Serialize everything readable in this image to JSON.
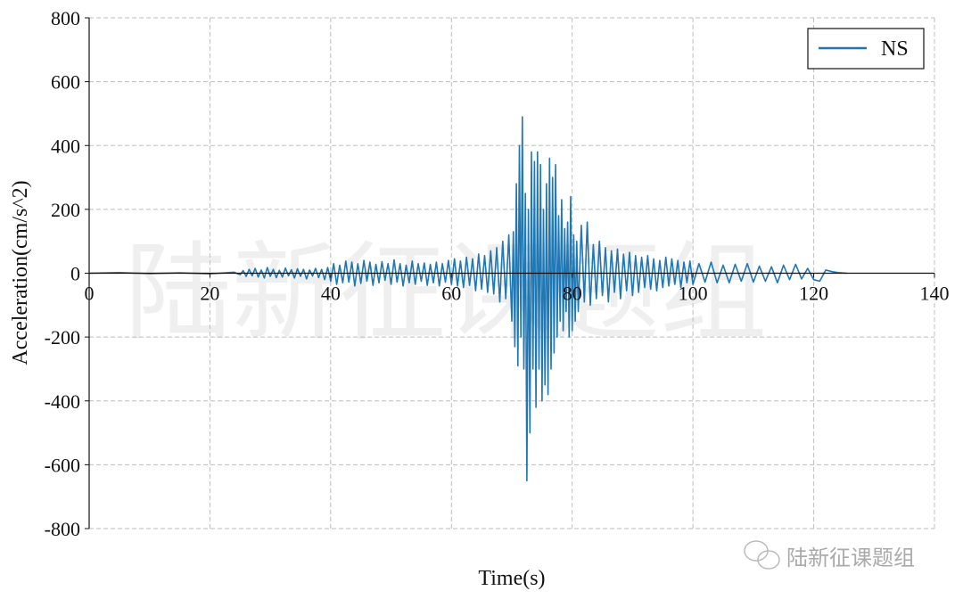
{
  "watermark": "陆新征课题组",
  "footer_watermark": "陆新征课题组",
  "chart_data": {
    "type": "line",
    "title": "",
    "xlabel": "Time(s)",
    "ylabel": "Acceleration(cm/s^2)",
    "xlim": [
      0,
      140
    ],
    "ylim": [
      -800,
      800
    ],
    "xticks": [
      0,
      20,
      40,
      60,
      80,
      100,
      120,
      140
    ],
    "yticks": [
      -800,
      -600,
      -400,
      -200,
      0,
      200,
      400,
      600,
      800
    ],
    "grid": true,
    "legend": {
      "placement": "top-right"
    },
    "series": [
      {
        "name": "NS",
        "color": "#1f77b4",
        "points": [
          [
            0,
            0
          ],
          [
            5,
            2
          ],
          [
            10,
            -1
          ],
          [
            15,
            1
          ],
          [
            20,
            -2
          ],
          [
            24,
            3
          ],
          [
            25,
            -5
          ],
          [
            25.5,
            8
          ],
          [
            26,
            -10
          ],
          [
            26.5,
            12
          ],
          [
            27,
            -8
          ],
          [
            27.5,
            15
          ],
          [
            28,
            -12
          ],
          [
            28.5,
            10
          ],
          [
            29,
            -15
          ],
          [
            29.5,
            18
          ],
          [
            30,
            -10
          ],
          [
            30.5,
            12
          ],
          [
            31,
            -14
          ],
          [
            31.5,
            9
          ],
          [
            32,
            -12
          ],
          [
            32.5,
            16
          ],
          [
            33,
            -8
          ],
          [
            33.5,
            11
          ],
          [
            34,
            -15
          ],
          [
            34.5,
            14
          ],
          [
            35,
            -10
          ],
          [
            35.5,
            12
          ],
          [
            36,
            -18
          ],
          [
            36.5,
            10
          ],
          [
            37,
            -9
          ],
          [
            37.5,
            15
          ],
          [
            38,
            -14
          ],
          [
            38.5,
            12
          ],
          [
            39,
            -20
          ],
          [
            39.5,
            18
          ],
          [
            40,
            -25
          ],
          [
            40.5,
            30
          ],
          [
            41,
            -35
          ],
          [
            41.5,
            25
          ],
          [
            42,
            -30
          ],
          [
            42.5,
            38
          ],
          [
            43,
            -28
          ],
          [
            43.5,
            35
          ],
          [
            44,
            -40
          ],
          [
            44.5,
            30
          ],
          [
            45,
            -32
          ],
          [
            45.5,
            40
          ],
          [
            46,
            -25
          ],
          [
            46.5,
            35
          ],
          [
            47,
            -38
          ],
          [
            47.5,
            28
          ],
          [
            48,
            -30
          ],
          [
            48.5,
            36
          ],
          [
            49,
            -22
          ],
          [
            49.5,
            30
          ],
          [
            50,
            -35
          ],
          [
            50.5,
            42
          ],
          [
            51,
            -28
          ],
          [
            51.5,
            30
          ],
          [
            52,
            -40
          ],
          [
            52.5,
            25
          ],
          [
            53,
            -30
          ],
          [
            53.5,
            38
          ],
          [
            54,
            -35
          ],
          [
            54.5,
            30
          ],
          [
            55,
            -25
          ],
          [
            55.5,
            32
          ],
          [
            56,
            -38
          ],
          [
            56.5,
            28
          ],
          [
            57,
            -30
          ],
          [
            57.5,
            35
          ],
          [
            58,
            -40
          ],
          [
            58.5,
            30
          ],
          [
            59,
            -28
          ],
          [
            59.5,
            40
          ],
          [
            60,
            -35
          ],
          [
            60.5,
            45
          ],
          [
            61,
            -40
          ],
          [
            61.5,
            38
          ],
          [
            62,
            -45
          ],
          [
            62.5,
            50
          ],
          [
            63,
            -38
          ],
          [
            63.5,
            45
          ],
          [
            64,
            -55
          ],
          [
            64.5,
            60
          ],
          [
            65,
            -50
          ],
          [
            65.5,
            55
          ],
          [
            66,
            -60
          ],
          [
            66.5,
            70
          ],
          [
            67,
            -65
          ],
          [
            67.5,
            80
          ],
          [
            68,
            -90
          ],
          [
            68.5,
            100
          ],
          [
            69,
            -80
          ],
          [
            69.5,
            120
          ],
          [
            70,
            -150
          ],
          [
            70.25,
            130
          ],
          [
            70.5,
            -230
          ],
          [
            70.75,
            280
          ],
          [
            71,
            -290
          ],
          [
            71.25,
            400
          ],
          [
            71.5,
            -200
          ],
          [
            71.75,
            490
          ],
          [
            72,
            -300
          ],
          [
            72.25,
            250
          ],
          [
            72.5,
            -650
          ],
          [
            72.75,
            200
          ],
          [
            73,
            -500
          ],
          [
            73.25,
            380
          ],
          [
            73.5,
            -300
          ],
          [
            73.75,
            350
          ],
          [
            74,
            -420
          ],
          [
            74.25,
            380
          ],
          [
            74.5,
            -300
          ],
          [
            74.75,
            340
          ],
          [
            75,
            -400
          ],
          [
            75.25,
            200
          ],
          [
            75.5,
            -350
          ],
          [
            75.75,
            280
          ],
          [
            76,
            -380
          ],
          [
            76.25,
            360
          ],
          [
            76.5,
            -300
          ],
          [
            76.75,
            300
          ],
          [
            77,
            -250
          ],
          [
            77.25,
            340
          ],
          [
            77.5,
            -200
          ],
          [
            77.75,
            180
          ],
          [
            78,
            -150
          ],
          [
            78.25,
            230
          ],
          [
            78.5,
            -180
          ],
          [
            78.75,
            140
          ],
          [
            79,
            -120
          ],
          [
            79.25,
            160
          ],
          [
            79.5,
            -200
          ],
          [
            79.75,
            240
          ],
          [
            80,
            -180
          ],
          [
            80.25,
            120
          ],
          [
            80.5,
            -150
          ],
          [
            80.75,
            100
          ],
          [
            81,
            -120
          ],
          [
            81.5,
            150
          ],
          [
            82,
            -90
          ],
          [
            82.5,
            160
          ],
          [
            83,
            -100
          ],
          [
            83.5,
            90
          ],
          [
            84,
            -80
          ],
          [
            84.5,
            100
          ],
          [
            85,
            -70
          ],
          [
            85.5,
            80
          ],
          [
            86,
            -90
          ],
          [
            86.5,
            70
          ],
          [
            87,
            -60
          ],
          [
            87.5,
            75
          ],
          [
            88,
            -80
          ],
          [
            88.5,
            60
          ],
          [
            89,
            -55
          ],
          [
            89.5,
            65
          ],
          [
            90,
            -70
          ],
          [
            90.5,
            55
          ],
          [
            91,
            -60
          ],
          [
            91.5,
            50
          ],
          [
            92,
            -45
          ],
          [
            92.5,
            55
          ],
          [
            93,
            -50
          ],
          [
            93.5,
            45
          ],
          [
            94,
            -55
          ],
          [
            94.5,
            40
          ],
          [
            95,
            -45
          ],
          [
            95.5,
            50
          ],
          [
            96,
            -40
          ],
          [
            96.5,
            45
          ],
          [
            97,
            -35
          ],
          [
            97.5,
            40
          ],
          [
            98,
            -45
          ],
          [
            98.5,
            35
          ],
          [
            99,
            -30
          ],
          [
            99.5,
            38
          ],
          [
            100,
            -35
          ],
          [
            101,
            30
          ],
          [
            102,
            -28
          ],
          [
            103,
            35
          ],
          [
            104,
            -30
          ],
          [
            105,
            25
          ],
          [
            106,
            -30
          ],
          [
            107,
            28
          ],
          [
            108,
            -25
          ],
          [
            109,
            30
          ],
          [
            110,
            -28
          ],
          [
            111,
            22
          ],
          [
            112,
            -25
          ],
          [
            113,
            20
          ],
          [
            114,
            -30
          ],
          [
            115,
            25
          ],
          [
            116,
            -20
          ],
          [
            117,
            28
          ],
          [
            118,
            -18
          ],
          [
            119,
            15
          ],
          [
            120,
            -20
          ],
          [
            121,
            -25
          ],
          [
            122,
            10
          ],
          [
            123,
            5
          ],
          [
            124,
            2
          ],
          [
            125.5,
            0
          ]
        ]
      }
    ]
  }
}
